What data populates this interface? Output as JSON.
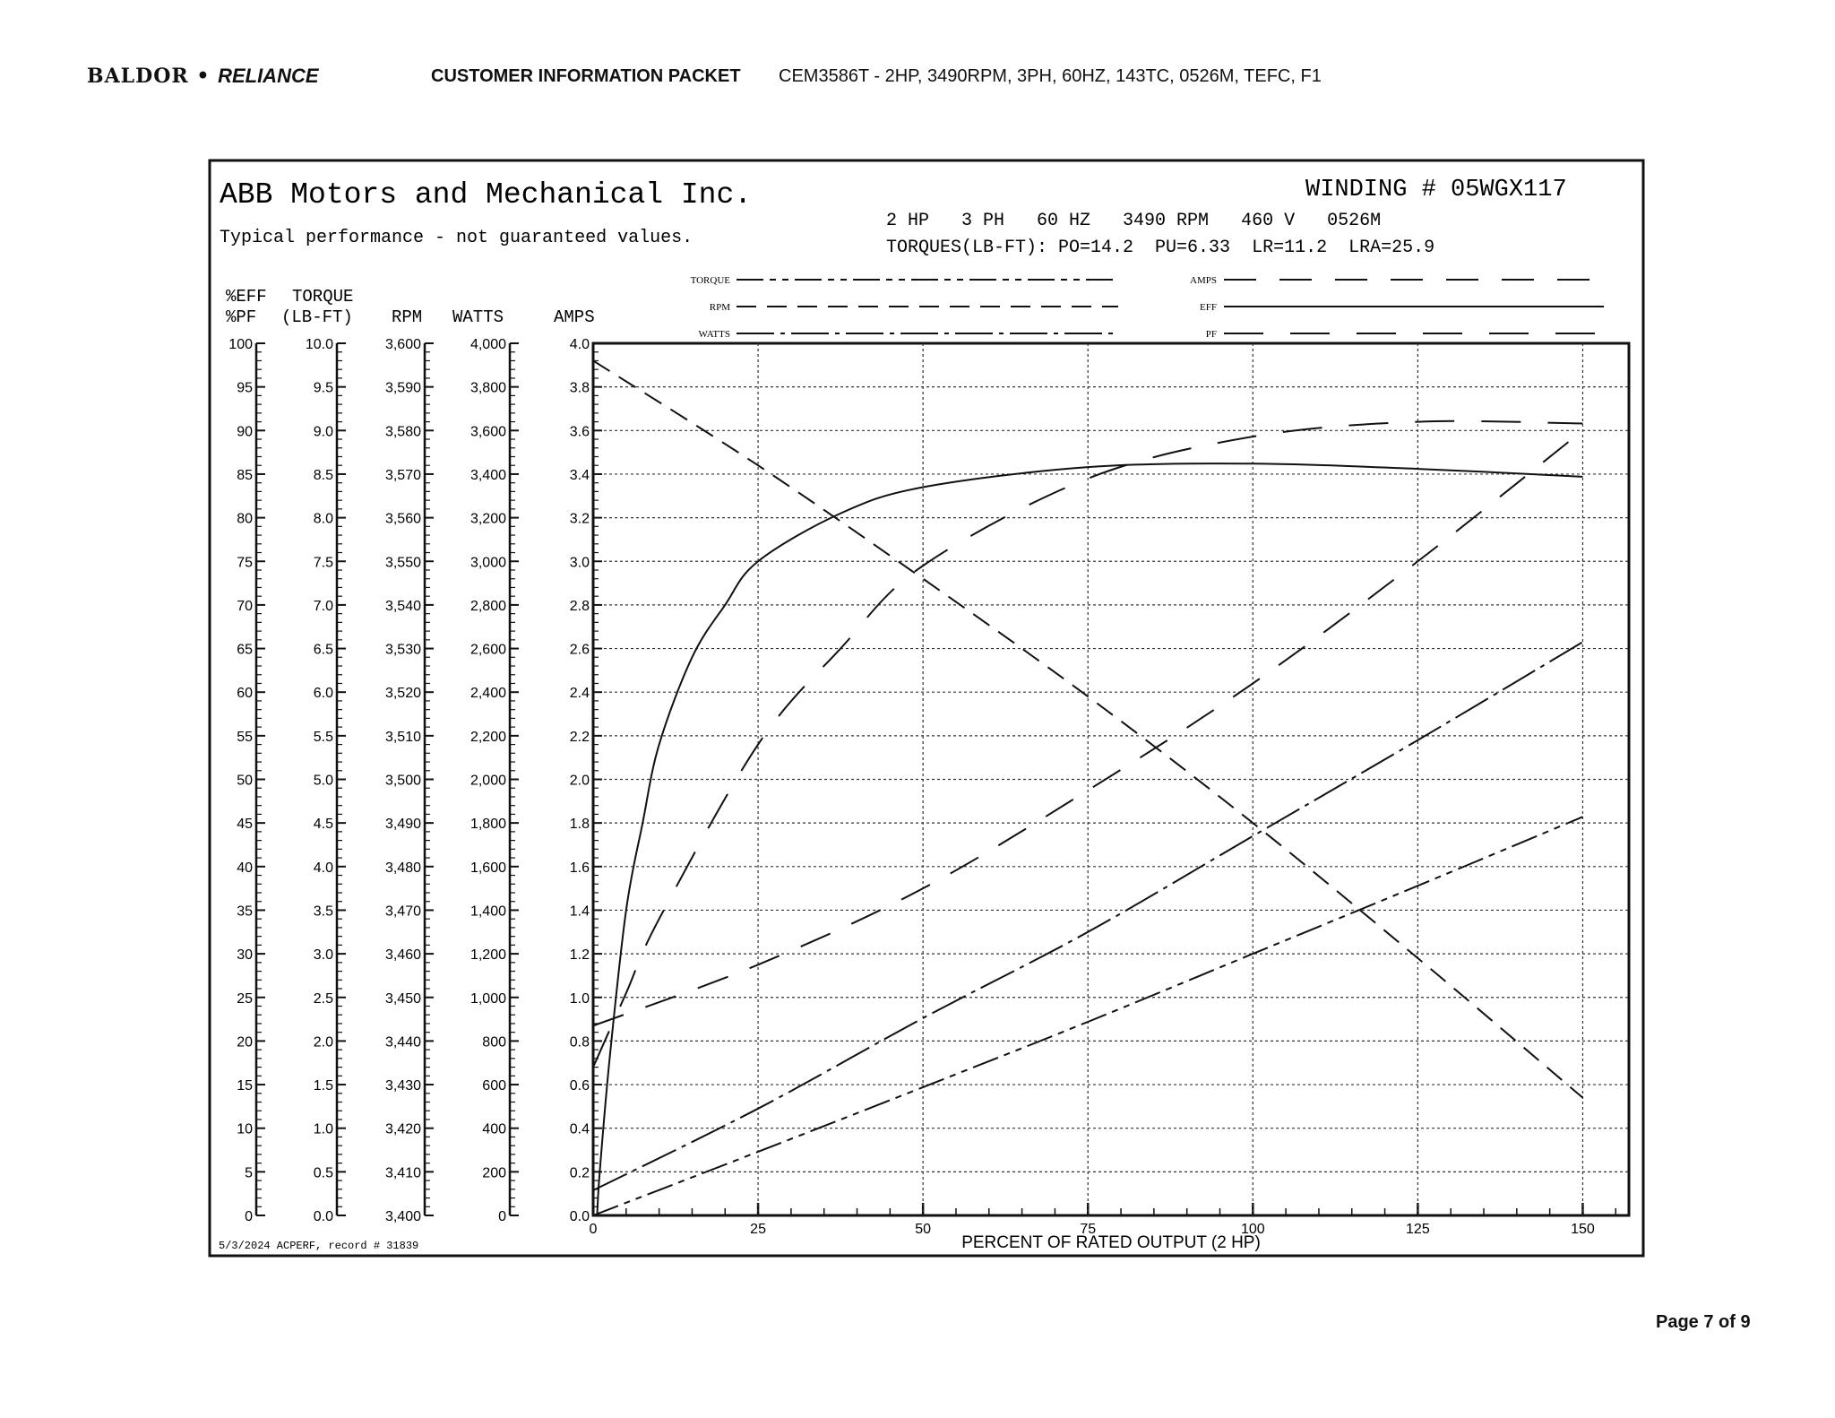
{
  "header": {
    "logo_text": "BALDOR • RELIANCE",
    "logo_left": "BALDOR",
    "logo_right": "RELIANCE",
    "packet_title": "CUSTOMER INFORMATION PACKET",
    "spec": "CEM3586T - 2HP, 3490RPM, 3PH, 60HZ, 143TC, 0526M, TEFC, F1"
  },
  "footer": {
    "page": "Page 7 of 9"
  },
  "chart_data": {
    "type": "line",
    "company": "ABB Motors and Mechanical Inc.",
    "subtitle": "Typical performance - not guaranteed values.",
    "winding": "WINDING # 05WGX117",
    "ratings": "2 HP   3 PH   60 HZ   3490 RPM   460 V   0526M",
    "torques": "TORQUES(LB-FT): PO=14.2  PU=6.33  LR=11.2  LRA=25.9",
    "record": "5/3/2024 ACPERF, record # 31839",
    "xlabel": "PERCENT OF RATED OUTPUT (2 HP)",
    "xlim": [
      0,
      157
    ],
    "xticks": [
      "0",
      "25",
      "50",
      "75",
      "100",
      "125",
      "150"
    ],
    "grid": true,
    "legend_placement": "top",
    "axes": [
      {
        "label1": "%EFF",
        "label2": "%PF",
        "range": [
          0,
          100
        ],
        "ticks": [
          "0",
          "5",
          "10",
          "15",
          "20",
          "25",
          "30",
          "35",
          "40",
          "45",
          "50",
          "55",
          "60",
          "65",
          "70",
          "75",
          "80",
          "85",
          "90",
          "95",
          "100"
        ]
      },
      {
        "label1": "TORQUE",
        "label2": "(LB-FT)",
        "range": [
          0,
          10
        ],
        "ticks": [
          "0.0",
          "0.5",
          "1.0",
          "1.5",
          "2.0",
          "2.5",
          "3.0",
          "3.5",
          "4.0",
          "4.5",
          "5.0",
          "5.5",
          "6.0",
          "6.5",
          "7.0",
          "7.5",
          "8.0",
          "8.5",
          "9.0",
          "9.5",
          "10.0"
        ]
      },
      {
        "label1": "",
        "label2": "RPM",
        "range": [
          3400,
          3600
        ],
        "ticks": [
          "3,400",
          "3,410",
          "3,420",
          "3,430",
          "3,440",
          "3,450",
          "3,460",
          "3,470",
          "3,480",
          "3,490",
          "3,500",
          "3,510",
          "3,520",
          "3,530",
          "3,540",
          "3,550",
          "3,560",
          "3,570",
          "3,580",
          "3,590",
          "3,600"
        ]
      },
      {
        "label1": "",
        "label2": "WATTS",
        "range": [
          0,
          4000
        ],
        "ticks": [
          "0",
          "200",
          "400",
          "600",
          "800",
          "1,000",
          "1,200",
          "1,400",
          "1,600",
          "1,800",
          "2,000",
          "2,200",
          "2,400",
          "2,600",
          "2,800",
          "3,000",
          "3,200",
          "3,400",
          "3,600",
          "3,800",
          "4,000"
        ]
      },
      {
        "label1": "",
        "label2": "AMPS",
        "range": [
          0,
          4
        ],
        "ticks": [
          "0.0",
          "0.2",
          "0.4",
          "0.6",
          "0.8",
          "1.0",
          "1.2",
          "1.4",
          "1.6",
          "1.8",
          "2.0",
          "2.2",
          "2.4",
          "2.6",
          "2.8",
          "3.0",
          "3.2",
          "3.4",
          "3.6",
          "3.8",
          "4.0"
        ]
      }
    ],
    "series": [
      {
        "name": "EFF",
        "axis": 0,
        "style": "solid",
        "x": [
          0.6,
          1,
          2.5,
          5,
          7.5,
          10,
          15,
          20,
          25,
          37.5,
          50,
          75,
          100,
          125,
          150
        ],
        "y": [
          0,
          5,
          18,
          35,
          45,
          54,
          64,
          70,
          75,
          80.5,
          83.5,
          85.8,
          86.2,
          85.6,
          84.7
        ]
      },
      {
        "name": "PF",
        "axis": 0,
        "style": "longdash",
        "x": [
          0,
          5,
          10,
          25,
          37.5,
          50,
          75,
          100,
          125,
          150
        ],
        "y": [
          17,
          25.5,
          34,
          54,
          65,
          74.5,
          84.5,
          89.3,
          91,
          90.8
        ]
      },
      {
        "name": "RPM",
        "axis": 2,
        "style": "dash",
        "x": [
          0,
          25,
          50,
          75,
          100,
          125,
          150
        ],
        "y": [
          3596,
          3572,
          3546,
          3519,
          3490,
          3459,
          3427
        ]
      },
      {
        "name": "AMPS",
        "axis": 4,
        "style": "gapdash",
        "x": [
          0,
          25,
          50,
          75,
          100,
          125,
          150
        ],
        "y": [
          0.87,
          1.15,
          1.5,
          1.95,
          2.44,
          3.0,
          3.6
        ]
      },
      {
        "name": "WATTS",
        "axis": 3,
        "style": "dashdot",
        "x": [
          0,
          25,
          50,
          75,
          100,
          125,
          150
        ],
        "y": [
          115,
          490,
          905,
          1300,
          1740,
          2180,
          2630
        ]
      },
      {
        "name": "TORQUE",
        "axis": 1,
        "style": "dashdotdot",
        "x": [
          0,
          25,
          50,
          75,
          100,
          125,
          150
        ],
        "y": [
          0,
          0.73,
          1.47,
          2.22,
          3.0,
          3.78,
          4.57
        ]
      }
    ],
    "legend": [
      {
        "label": "TORQUE",
        "style": "dashdotdot"
      },
      {
        "label": "RPM",
        "style": "dash"
      },
      {
        "label": "WATTS",
        "style": "dashdot"
      },
      {
        "label": "AMPS",
        "style": "gapdash"
      },
      {
        "label": "EFF",
        "style": "solid"
      },
      {
        "label": "PF",
        "style": "longdash"
      }
    ],
    "line_color": "#111111"
  }
}
